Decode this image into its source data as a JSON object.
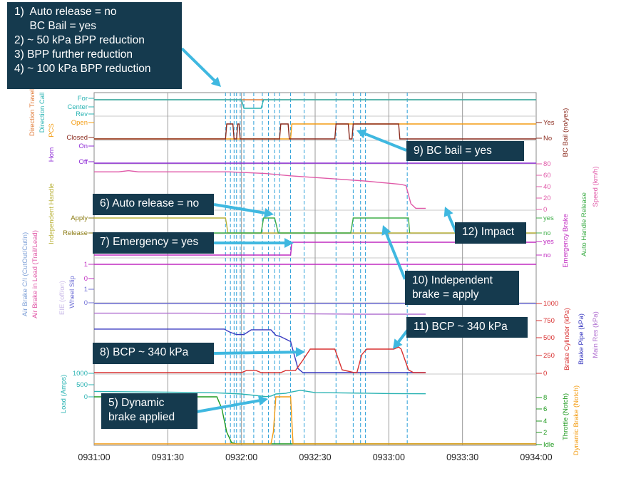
{
  "chart_data": {
    "type": "line",
    "x_ticks": [
      "0931:00",
      "0931:30",
      "0932:00",
      "0932:30",
      "0933:00",
      "0933:30",
      "0934:00"
    ],
    "x_range_seconds": [
      0,
      180
    ],
    "event_markers_seconds": [
      53.5,
      55.5,
      57,
      58,
      59.5,
      61,
      65,
      68.5,
      71,
      73.5,
      75.5,
      80,
      85.5,
      98.5,
      105.5,
      108.5,
      110.5,
      127.5
    ],
    "panels": [
      {
        "id": "direction",
        "left_labels": [
          "Direction Travel",
          "Direction Call"
        ],
        "ticks": [
          "For",
          "Center",
          "Rev"
        ],
        "series": [
          {
            "name": "Direction Travel",
            "color": "#e07b39",
            "levels": [
              "For",
              "Center",
              "Rev"
            ],
            "points": [
              [
                0,
                "For"
              ],
              [
                180,
                "For"
              ]
            ]
          },
          {
            "name": "Direction Call",
            "color": "#2ab3b3",
            "levels": [
              "For",
              "Center",
              "Rev"
            ],
            "points": [
              [
                0,
                "For"
              ],
              [
                60,
                "For"
              ],
              [
                61,
                "Center"
              ],
              [
                68,
                "Center"
              ],
              [
                69,
                "For"
              ],
              [
                180,
                "For"
              ]
            ]
          }
        ]
      },
      {
        "id": "pcs",
        "left_labels": [
          "PCS"
        ],
        "right_labels": [
          "BC Bail (no/yes)"
        ],
        "ticks": [
          "Open",
          "Closed"
        ],
        "right_ticks": [
          "Yes",
          "No"
        ],
        "series": [
          {
            "name": "PCS",
            "color": "#f39c12",
            "levels": [
              "Open",
              "Closed"
            ],
            "points": [
              [
                0,
                "Closed"
              ],
              [
                80,
                "Closed"
              ],
              [
                80.5,
                "Open"
              ],
              [
                180,
                "Open"
              ]
            ]
          },
          {
            "name": "BC Bail (no/yes)",
            "color": "#8b2b1e",
            "levels": [
              "Yes",
              "No"
            ],
            "points": [
              [
                0,
                "No"
              ],
              [
                53.5,
                "No"
              ],
              [
                54,
                "Yes"
              ],
              [
                56.5,
                "Yes"
              ],
              [
                57,
                "No"
              ],
              [
                58,
                "No"
              ],
              [
                58.5,
                "Yes"
              ],
              [
                59,
                "Yes"
              ],
              [
                59.5,
                "No"
              ],
              [
                75.5,
                "No"
              ],
              [
                76,
                "Yes"
              ],
              [
                79,
                "Yes"
              ],
              [
                79.5,
                "No"
              ],
              [
                98,
                "No"
              ],
              [
                98.5,
                "Yes"
              ],
              [
                103.5,
                "Yes"
              ],
              [
                104,
                "No"
              ],
              [
                105,
                "No"
              ],
              [
                105.5,
                "Yes"
              ],
              [
                124,
                "Yes"
              ],
              [
                124.5,
                "No"
              ],
              [
                180,
                "No"
              ]
            ]
          }
        ]
      },
      {
        "id": "horn",
        "left_labels": [
          "Horn"
        ],
        "ticks": [
          "On",
          "Off"
        ],
        "series": [
          {
            "name": "Horn",
            "color": "#8e2bd6",
            "levels": [
              "On",
              "Off"
            ],
            "points": [
              [
                0,
                "Off"
              ],
              [
                180,
                "Off"
              ]
            ]
          }
        ]
      },
      {
        "id": "speed",
        "right_labels": [
          "Speed (km/h)"
        ],
        "right_ticks": [
          "80",
          "60",
          "40",
          "20",
          "0"
        ],
        "y_range": [
          0,
          80
        ],
        "series": [
          {
            "name": "Speed (km/h)",
            "color": "#e05aa8",
            "points": [
              [
                0,
                66
              ],
              [
                10,
                66
              ],
              [
                14,
                68
              ],
              [
                18,
                66
              ],
              [
                55,
                66
              ],
              [
                70,
                63
              ],
              [
                80,
                59
              ],
              [
                90,
                56
              ],
              [
                100,
                53
              ],
              [
                110,
                50
              ],
              [
                120,
                46
              ],
              [
                125,
                44
              ],
              [
                127,
                42
              ],
              [
                129,
                10
              ],
              [
                131,
                2
              ],
              [
                135,
                2
              ]
            ]
          }
        ]
      },
      {
        "id": "handles",
        "left_labels": [
          "Independent Handle"
        ],
        "right_labels": [
          "Auto Handle Release"
        ],
        "ticks": [
          "Apply",
          "Release"
        ],
        "right_ticks": [
          "yes",
          "no"
        ],
        "series": [
          {
            "name": "Independent Handle",
            "color": "#b9b23a",
            "levels": [
              "Apply",
              "Release"
            ],
            "points": [
              [
                0,
                "Apply"
              ],
              [
                53.5,
                "Apply"
              ],
              [
                54.5,
                "Release"
              ],
              [
                180,
                "Release"
              ]
            ]
          },
          {
            "name": "Auto Handle Release",
            "color": "#3fae49",
            "levels": [
              "yes",
              "no"
            ],
            "points": [
              [
                0,
                "no"
              ],
              [
                68,
                "no"
              ],
              [
                69,
                "yes"
              ],
              [
                73.5,
                "yes"
              ],
              [
                75,
                "no"
              ],
              [
                104.5,
                "no"
              ],
              [
                105.5,
                "yes"
              ],
              [
                128,
                "yes"
              ],
              [
                128.5,
                "no"
              ]
            ]
          }
        ]
      },
      {
        "id": "emergency",
        "right_labels": [
          "Emergency Brake"
        ],
        "right_ticks": [
          "yes",
          "no"
        ],
        "series": [
          {
            "name": "Emergency Brake",
            "color": "#c02bc0",
            "levels": [
              "yes",
              "no"
            ],
            "points": [
              [
                0,
                "no"
              ],
              [
                80,
                "no"
              ],
              [
                80.5,
                "yes"
              ],
              [
                180,
                "yes"
              ]
            ]
          }
        ]
      },
      {
        "id": "air",
        "left_labels": [
          "Air Brake C/I (CutOut/CutIn)",
          "Air Brake in Lead (Trail/Lead)",
          "EIE (off/on)",
          "Wheel Slip"
        ],
        "ticks": [
          "1",
          "0",
          "1",
          "0"
        ],
        "series": [
          {
            "name": "Air Brake C/I",
            "color": "#c02bc0",
            "points": [
              [
                0,
                1
              ],
              [
                180,
                1
              ]
            ]
          },
          {
            "name": "Wheel Slip",
            "color": "#6f6fd6",
            "points": [
              [
                0,
                0
              ],
              [
                180,
                0
              ]
            ]
          }
        ]
      },
      {
        "id": "pressure",
        "right_labels": [
          "Brake Cylinder (kPa)",
          "Brake Pipe (kPa)",
          "Main Res (kPa)"
        ],
        "right_ticks": [
          "1000",
          "750",
          "500",
          "250",
          "0"
        ],
        "y_range": [
          0,
          1000
        ],
        "series": [
          {
            "name": "Main Res (kPa)",
            "color": "#b070d0",
            "points": [
              [
                0,
                860
              ],
              [
                40,
                860
              ],
              [
                75,
                855
              ],
              [
                90,
                850
              ],
              [
                110,
                845
              ],
              [
                135,
                845
              ]
            ]
          },
          {
            "name": "Brake Pipe (kPa)",
            "color": "#3a3ac0",
            "points": [
              [
                0,
                630
              ],
              [
                53,
                630
              ],
              [
                55,
                590
              ],
              [
                58,
                550
              ],
              [
                61,
                550
              ],
              [
                64,
                620
              ],
              [
                72,
                620
              ],
              [
                74,
                540
              ],
              [
                76,
                520
              ],
              [
                80,
                450
              ],
              [
                83,
                60
              ],
              [
                85,
                0
              ],
              [
                135,
                0
              ]
            ]
          },
          {
            "name": "Brake Cylinder (kPa)",
            "color": "#d83030",
            "points": [
              [
                0,
                0
              ],
              [
                60,
                0
              ],
              [
                62,
                30
              ],
              [
                66,
                30
              ],
              [
                68,
                0
              ],
              [
                76,
                0
              ],
              [
                78,
                30
              ],
              [
                82,
                30
              ],
              [
                85,
                180
              ],
              [
                88,
                340
              ],
              [
                98,
                340
              ],
              [
                101,
                40
              ],
              [
                106,
                0
              ],
              [
                107,
                0
              ],
              [
                109,
                260
              ],
              [
                111,
                340
              ],
              [
                122,
                340
              ],
              [
                124,
                370
              ],
              [
                125,
                340
              ],
              [
                128,
                40
              ],
              [
                130,
                0
              ],
              [
                135,
                0
              ]
            ]
          }
        ]
      },
      {
        "id": "load",
        "left_labels": [
          "Load (Amps)"
        ],
        "right_labels": [
          "Throttle (Notch)",
          "Dynamic Brake (Notch)"
        ],
        "ticks": [
          "1000",
          "500",
          "0"
        ],
        "right_ticks": [
          "8",
          "6",
          "4",
          "2",
          "Idle"
        ],
        "y_range_left": [
          0,
          1000
        ],
        "y_range_right": [
          0,
          8
        ],
        "series": [
          {
            "name": "Load (Amps)",
            "color": "#2ab3b3",
            "axis": "left",
            "points": [
              [
                0,
                260
              ],
              [
                30,
                230
              ],
              [
                50,
                200
              ],
              [
                60,
                150
              ],
              [
                70,
                40
              ],
              [
                72,
                60
              ],
              [
                74,
                150
              ],
              [
                78,
                180
              ],
              [
                80,
                230
              ],
              [
                84,
                310
              ],
              [
                90,
                210
              ],
              [
                100,
                200
              ],
              [
                120,
                170
              ],
              [
                135,
                160
              ]
            ]
          },
          {
            "name": "Throttle (Notch)",
            "color": "#1f9a1f",
            "axis": "right",
            "points": [
              [
                0,
                8
              ],
              [
                50,
                8
              ],
              [
                52,
                6
              ],
              [
                54,
                2
              ],
              [
                56,
                0.2
              ],
              [
                58,
                0
              ],
              [
                180,
                0
              ]
            ]
          },
          {
            "name": "Dynamic Brake (Notch)",
            "color": "#f39c12",
            "axis": "right",
            "points": [
              [
                0,
                0
              ],
              [
                72,
                0
              ],
              [
                73,
                2
              ],
              [
                74,
                8
              ],
              [
                80,
                8
              ],
              [
                81,
                0
              ],
              [
                180,
                0
              ]
            ]
          }
        ]
      }
    ]
  },
  "callouts": [
    {
      "id": "intro",
      "lines": [
        "1)  Auto release = no",
        "     BC Bail = yes",
        "2) ~ 50 kPa BPP reduction",
        "3) BPP further reduction",
        "4) ~ 100 kPa BPP reduction"
      ]
    },
    {
      "id": "c5",
      "lines": [
        "5) Dynamic",
        "brake applied"
      ]
    },
    {
      "id": "c6",
      "lines": [
        "6) Auto release = no"
      ]
    },
    {
      "id": "c7",
      "lines": [
        "7) Emergency = yes"
      ]
    },
    {
      "id": "c8",
      "lines": [
        "8) BCP ~ 340 kPa"
      ]
    },
    {
      "id": "c9",
      "lines": [
        "9) BC bail = yes"
      ]
    },
    {
      "id": "c10",
      "lines": [
        "10) Independent",
        "brake = apply"
      ]
    },
    {
      "id": "c11",
      "lines": [
        "11) BCP ~ 340 kPa"
      ]
    },
    {
      "id": "c12",
      "lines": [
        "12) Impact"
      ]
    }
  ],
  "colors": {
    "callout_bg": "#153a4e",
    "arrow": "#3fb8e0",
    "marker": "#2a9fd8",
    "grid": "#c8c8c8"
  }
}
